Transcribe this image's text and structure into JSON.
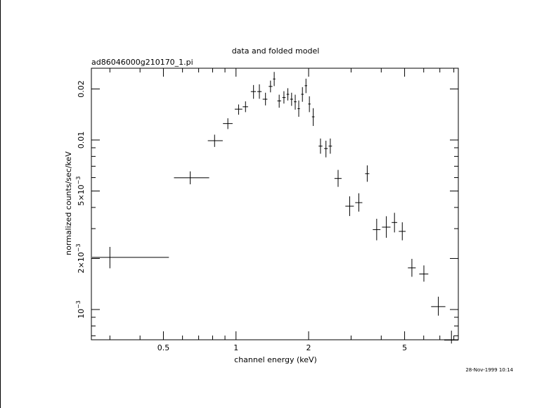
{
  "chart_data": {
    "type": "scatter",
    "title": "data and folded model",
    "subtitle": "ad86046000g210170_1.pi",
    "xlabel": "channel energy (keV)",
    "ylabel": "normalized counts/sec/keV",
    "timestamp": "28-Nov-1999 10:14",
    "x_scale": "log",
    "y_scale": "log",
    "xlim": [
      0.2514,
      8.35
    ],
    "ylim": [
      0.000663,
      0.0265
    ],
    "x_ticks": [
      {
        "value": 0.5,
        "label": "0.5"
      },
      {
        "value": 1,
        "label": "1"
      },
      {
        "value": 2,
        "label": "2"
      },
      {
        "value": 5,
        "label": "5"
      }
    ],
    "y_ticks": [
      {
        "value": 0.001,
        "label": "10",
        "exp": "−3"
      },
      {
        "value": 0.002,
        "label": "2×10",
        "exp": "−3"
      },
      {
        "value": 0.005,
        "label": "5×10",
        "exp": "−3"
      },
      {
        "value": 0.01,
        "label": "0.01",
        "exp": ""
      },
      {
        "value": 0.02,
        "label": "0.02",
        "exp": ""
      }
    ],
    "grid": false,
    "series": [
      {
        "points": [
          {
            "x": 0.3,
            "xlo": 0.253,
            "xhi": 0.527,
            "y": 0.00203,
            "ylo": 0.00175,
            "yhi": 0.00234
          },
          {
            "x": 0.646,
            "xlo": 0.553,
            "xhi": 0.774,
            "y": 0.00598,
            "ylo": 0.00548,
            "yhi": 0.00653
          },
          {
            "x": 0.815,
            "xlo": 0.764,
            "xhi": 0.881,
            "y": 0.0099,
            "ylo": 0.0091,
            "yhi": 0.01075
          },
          {
            "x": 0.925,
            "xlo": 0.883,
            "xhi": 0.968,
            "y": 0.0125,
            "ylo": 0.0116,
            "yhi": 0.01343
          },
          {
            "x": 1.025,
            "xlo": 0.988,
            "xhi": 1.062,
            "y": 0.0152,
            "ylo": 0.0141,
            "yhi": 0.0162
          },
          {
            "x": 1.095,
            "xlo": 1.066,
            "xhi": 1.122,
            "y": 0.0157,
            "ylo": 0.0146,
            "yhi": 0.0169
          },
          {
            "x": 1.182,
            "xlo": 1.152,
            "xhi": 1.21,
            "y": 0.0193,
            "ylo": 0.0175,
            "yhi": 0.0211
          },
          {
            "x": 1.25,
            "xlo": 1.225,
            "xhi": 1.277,
            "y": 0.0193,
            "ylo": 0.0175,
            "yhi": 0.0213
          },
          {
            "x": 1.325,
            "xlo": 1.29,
            "xhi": 1.349,
            "y": 0.0174,
            "ylo": 0.016,
            "yhi": 0.019
          },
          {
            "x": 1.39,
            "xlo": 1.366,
            "xhi": 1.416,
            "y": 0.0207,
            "ylo": 0.0191,
            "yhi": 0.0224
          },
          {
            "x": 1.44,
            "xlo": 1.424,
            "xhi": 1.456,
            "y": 0.0229,
            "ylo": 0.0208,
            "yhi": 0.0252
          },
          {
            "x": 1.51,
            "xlo": 1.484,
            "xhi": 1.538,
            "y": 0.017,
            "ylo": 0.0155,
            "yhi": 0.0185
          },
          {
            "x": 1.58,
            "xlo": 1.556,
            "xhi": 1.606,
            "y": 0.0178,
            "ylo": 0.0164,
            "yhi": 0.0194
          },
          {
            "x": 1.64,
            "xlo": 1.62,
            "xhi": 1.661,
            "y": 0.0186,
            "ylo": 0.0171,
            "yhi": 0.0202
          },
          {
            "x": 1.7,
            "xlo": 1.677,
            "xhi": 1.723,
            "y": 0.0174,
            "ylo": 0.0159,
            "yhi": 0.019
          },
          {
            "x": 1.76,
            "xlo": 1.738,
            "xhi": 1.782,
            "y": 0.0168,
            "ylo": 0.0151,
            "yhi": 0.0185
          },
          {
            "x": 1.82,
            "xlo": 1.8,
            "xhi": 1.84,
            "y": 0.0153,
            "ylo": 0.0137,
            "yhi": 0.0171
          },
          {
            "x": 1.885,
            "xlo": 1.862,
            "xhi": 1.908,
            "y": 0.0186,
            "ylo": 0.0168,
            "yhi": 0.0205
          },
          {
            "x": 1.95,
            "xlo": 1.927,
            "xhi": 1.973,
            "y": 0.0209,
            "ylo": 0.0189,
            "yhi": 0.023
          },
          {
            "x": 2.015,
            "xlo": 1.992,
            "xhi": 2.038,
            "y": 0.0163,
            "ylo": 0.0146,
            "yhi": 0.0181
          },
          {
            "x": 2.09,
            "xlo": 2.064,
            "xhi": 2.116,
            "y": 0.0137,
            "ylo": 0.0121,
            "yhi": 0.0154
          },
          {
            "x": 2.24,
            "xlo": 2.2,
            "xhi": 2.282,
            "y": 0.0092,
            "ylo": 0.0083,
            "yhi": 0.0102
          },
          {
            "x": 2.36,
            "xlo": 2.32,
            "xhi": 2.4,
            "y": 0.0089,
            "ylo": 0.0079,
            "yhi": 0.0099
          },
          {
            "x": 2.46,
            "xlo": 2.42,
            "xhi": 2.5,
            "y": 0.0092,
            "ylo": 0.0083,
            "yhi": 0.0102
          },
          {
            "x": 2.65,
            "xlo": 2.56,
            "xhi": 2.74,
            "y": 0.00593,
            "ylo": 0.00529,
            "yhi": 0.00666
          },
          {
            "x": 2.96,
            "xlo": 2.84,
            "xhi": 3.08,
            "y": 0.00407,
            "ylo": 0.00356,
            "yhi": 0.00465
          },
          {
            "x": 3.23,
            "xlo": 3.12,
            "xhi": 3.34,
            "y": 0.00427,
            "ylo": 0.00378,
            "yhi": 0.00485
          },
          {
            "x": 3.5,
            "xlo": 3.43,
            "xhi": 3.57,
            "y": 0.00633,
            "ylo": 0.00567,
            "yhi": 0.00708
          },
          {
            "x": 3.83,
            "xlo": 3.69,
            "xhi": 3.97,
            "y": 0.00296,
            "ylo": 0.00256,
            "yhi": 0.00343
          },
          {
            "x": 4.2,
            "xlo": 4.03,
            "xhi": 4.37,
            "y": 0.00306,
            "ylo": 0.00265,
            "yhi": 0.00355
          },
          {
            "x": 4.54,
            "xlo": 4.42,
            "xhi": 4.66,
            "y": 0.00326,
            "ylo": 0.00285,
            "yhi": 0.00372
          },
          {
            "x": 4.89,
            "xlo": 4.73,
            "xhi": 5.05,
            "y": 0.00289,
            "ylo": 0.00256,
            "yhi": 0.00327
          },
          {
            "x": 5.36,
            "xlo": 5.16,
            "xhi": 5.56,
            "y": 0.00176,
            "ylo": 0.00156,
            "yhi": 0.00199
          },
          {
            "x": 6.01,
            "xlo": 5.75,
            "xhi": 6.27,
            "y": 0.00162,
            "ylo": 0.00146,
            "yhi": 0.00182
          },
          {
            "x": 6.9,
            "xlo": 6.44,
            "xhi": 7.38,
            "y": 0.00104,
            "ylo": 0.00092,
            "yhi": 0.00119
          },
          {
            "x": 7.82,
            "xlo": 7.3,
            "xhi": 8.35,
            "y": 0.00066,
            "ylo": 0.00063,
            "yhi": 0.00075
          }
        ]
      }
    ]
  }
}
